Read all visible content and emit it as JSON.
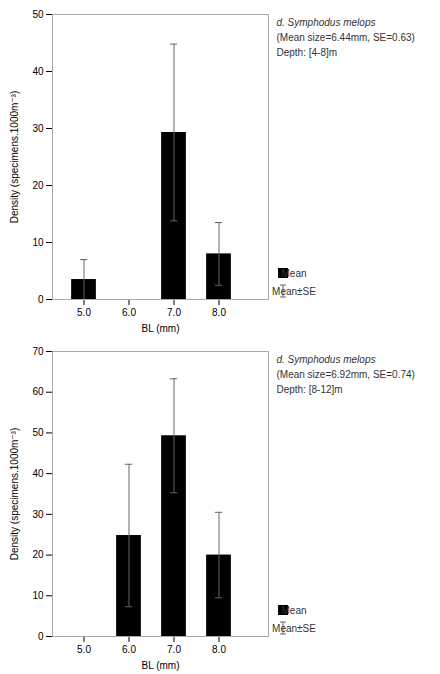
{
  "chart_data": [
    {
      "type": "bar",
      "categories": [
        5,
        6,
        7,
        8
      ],
      "series": [
        {
          "name": "Mean",
          "color": "#000000",
          "values": [
            3.5,
            0,
            29.3,
            8.0
          ]
        }
      ],
      "errors": {
        "name": "Mean±SE",
        "color": "#666666",
        "values": [
          3.5,
          0,
          15.5,
          5.5
        ]
      },
      "xlim": [
        4.3,
        9.1
      ],
      "xticks": [
        5,
        6,
        7,
        8
      ],
      "ylim": [
        0,
        50
      ],
      "yticks": [
        0,
        10,
        20,
        30,
        40,
        50
      ],
      "ylabel": "Density (specimens.1000m⁻³)",
      "xlabel": "BL (mm)",
      "annotations": [
        "d. Symphodus melops",
        "(Mean size=6.44mm, SE=0.63)",
        "Depth: [4-8]m"
      ],
      "legend": "right",
      "grid": false
    },
    {
      "type": "bar",
      "categories": [
        5,
        6,
        7,
        8
      ],
      "series": [
        {
          "name": "Mean",
          "color": "#000000",
          "values": [
            0,
            24.8,
            49.3,
            20.0
          ]
        }
      ],
      "errors": {
        "name": "Mean±SE",
        "color": "#666666",
        "values": [
          0,
          17.5,
          14.0,
          10.5
        ]
      },
      "xlim": [
        4.3,
        9.1
      ],
      "xticks": [
        5,
        6,
        7,
        8
      ],
      "ylim": [
        0,
        70
      ],
      "yticks": [
        0,
        10,
        20,
        30,
        40,
        50,
        60,
        70
      ],
      "ylabel": "Density (specimens.1000m⁻³)",
      "xlabel": "BL (mm)",
      "annotations": [
        "d. Symphodus melops",
        "(Mean size=6.92mm, SE=0.74)",
        "Depth: [8-12]m"
      ],
      "legend": "right",
      "grid": false
    }
  ]
}
